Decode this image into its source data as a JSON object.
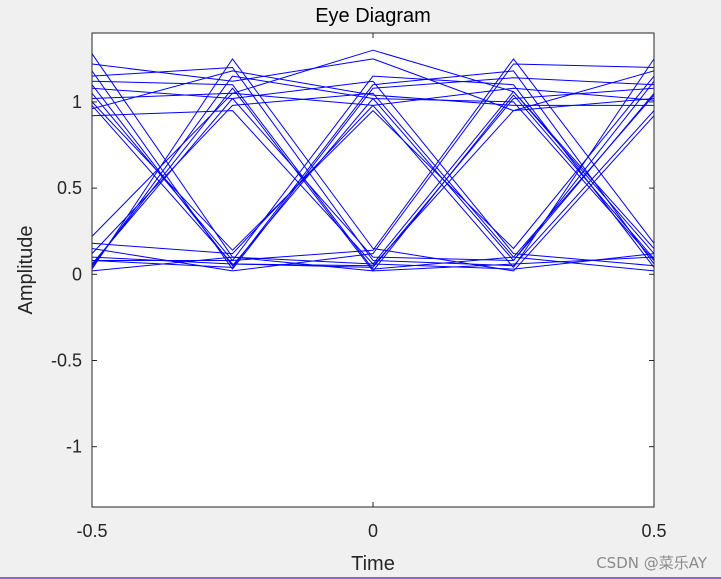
{
  "chart_data": {
    "type": "line",
    "title": "Eye Diagram",
    "xlabel": "Time",
    "ylabel": "Amplitude",
    "xlim": [
      -0.5,
      0.5
    ],
    "ylim": [
      -1.35,
      1.4
    ],
    "xticks": [
      -0.5,
      0,
      0.5
    ],
    "xtick_labels": [
      "-0.5",
      "0",
      "0.5"
    ],
    "yticks": [
      -1,
      -0.5,
      0,
      0.5,
      1
    ],
    "ytick_labels": [
      "-1",
      "-0.5",
      "0",
      "0.5",
      "1"
    ],
    "grid": false,
    "legend": "none",
    "series_color": "#0000ff",
    "trace_times": [
      -0.5,
      -0.25,
      0,
      0.25,
      0.5
    ],
    "traces": [
      [
        1.02,
        1.05,
        0.98,
        1.08,
        1.01
      ],
      [
        1.1,
        0.05,
        1.02,
        0.08,
        1.12
      ],
      [
        0.05,
        1.08,
        0.02,
        1.04,
        0.09
      ],
      [
        0.02,
        0.1,
        0.06,
        0.03,
        0.12
      ],
      [
        1.15,
        1.2,
        0.08,
        0.05,
        0.95
      ],
      [
        0.08,
        0.04,
        1.1,
        1.18,
        0.06
      ],
      [
        0.98,
        0.06,
        0.04,
        1.02,
        1.08
      ],
      [
        0.12,
        0.98,
        1.05,
        0.1,
        0.02
      ],
      [
        1.22,
        1.12,
        1.25,
        0.95,
        1.18
      ],
      [
        0.06,
        1.02,
        0.1,
        0.08,
        1.05
      ],
      [
        1.05,
        0.08,
        1.15,
        1.1,
        0.04
      ],
      [
        0.15,
        0.02,
        0.12,
        1.22,
        1.2
      ],
      [
        1.28,
        0.1,
        0.02,
        0.06,
        0.1
      ],
      [
        0.04,
        1.15,
        1.02,
        1.0,
        0.08
      ],
      [
        0.92,
        0.95,
        0.06,
        1.06,
        0.15
      ],
      [
        0.18,
        0.12,
        0.98,
        0.04,
        1.25
      ],
      [
        1.08,
        1.02,
        1.12,
        0.12,
        0.05
      ],
      [
        0.1,
        0.06,
        0.05,
        0.95,
        1.02
      ],
      [
        1.18,
        0.03,
        1.08,
        1.14,
        1.1
      ],
      [
        0.03,
        1.25,
        0.15,
        0.02,
        0.92
      ],
      [
        1.0,
        0.14,
        0.95,
        0.15,
        1.15
      ],
      [
        0.22,
        1.05,
        1.3,
        1.06,
        0.12
      ],
      [
        1.12,
        1.1,
        0.03,
        0.1,
        1.04
      ],
      [
        0.08,
        0.08,
        0.14,
        1.25,
        0.18
      ],
      [
        0.96,
        1.18,
        1.04,
        0.98,
        0.98
      ]
    ]
  },
  "watermark": "CSDN @菜乐AY"
}
